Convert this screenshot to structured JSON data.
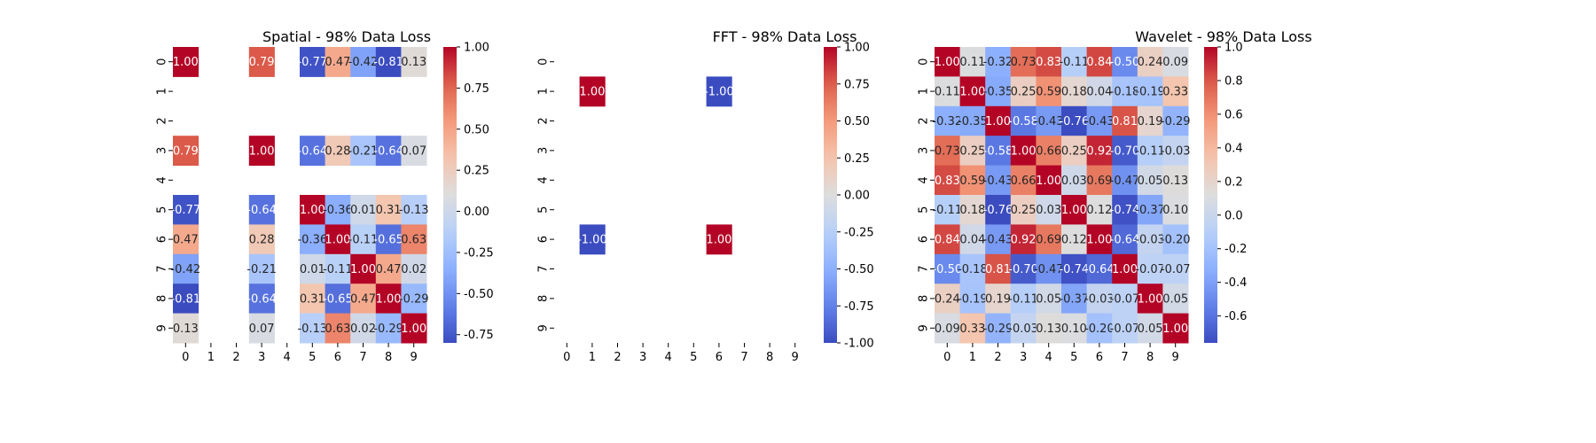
{
  "chart_data": [
    {
      "type": "heatmap",
      "title": "Spatial - 98% Data Loss",
      "xlabel": "",
      "ylabel": "",
      "x_categories": [
        "0",
        "1",
        "2",
        "3",
        "4",
        "5",
        "6",
        "7",
        "8",
        "9"
      ],
      "y_categories": [
        "0",
        "1",
        "2",
        "3",
        "4",
        "5",
        "6",
        "7",
        "8",
        "9"
      ],
      "colormap": "coolwarm",
      "vmin": -0.8,
      "vmax": 1.0,
      "colorbar_ticks": [
        "1.00",
        "0.75",
        "0.50",
        "0.25",
        "0.00",
        "-0.25",
        "-0.50",
        "-0.75"
      ],
      "values": [
        [
          1.0,
          null,
          null,
          0.79,
          null,
          -0.77,
          0.47,
          -0.42,
          -0.81,
          0.13
        ],
        [
          null,
          null,
          null,
          null,
          null,
          null,
          null,
          null,
          null,
          null
        ],
        [
          null,
          null,
          null,
          null,
          null,
          null,
          null,
          null,
          null,
          null
        ],
        [
          0.79,
          null,
          null,
          1.0,
          null,
          -0.64,
          0.28,
          -0.21,
          -0.64,
          0.07
        ],
        [
          null,
          null,
          null,
          null,
          null,
          null,
          null,
          null,
          null,
          null
        ],
        [
          -0.77,
          null,
          null,
          -0.64,
          null,
          1.0,
          -0.36,
          0.01,
          0.31,
          -0.13
        ],
        [
          0.47,
          null,
          null,
          0.28,
          null,
          -0.36,
          1.0,
          -0.11,
          -0.65,
          0.63
        ],
        [
          -0.42,
          null,
          null,
          -0.21,
          null,
          0.01,
          -0.11,
          1.0,
          0.47,
          0.02
        ],
        [
          -0.81,
          null,
          null,
          -0.64,
          null,
          0.31,
          -0.65,
          0.47,
          1.0,
          -0.29
        ],
        [
          0.13,
          null,
          null,
          0.07,
          null,
          -0.13,
          0.63,
          0.02,
          -0.29,
          1.0
        ]
      ]
    },
    {
      "type": "heatmap",
      "title": "FFT - 98% Data Loss",
      "xlabel": "",
      "ylabel": "",
      "x_categories": [
        "0",
        "1",
        "2",
        "3",
        "4",
        "5",
        "6",
        "7",
        "8",
        "9"
      ],
      "y_categories": [
        "0",
        "1",
        "2",
        "3",
        "4",
        "5",
        "6",
        "7",
        "8",
        "9"
      ],
      "colormap": "coolwarm",
      "vmin": -1.0,
      "vmax": 1.0,
      "colorbar_ticks": [
        "1.00",
        "0.75",
        "0.50",
        "0.25",
        "0.00",
        "-0.25",
        "-0.50",
        "-0.75",
        "-1.00"
      ],
      "values": [
        [
          null,
          null,
          null,
          null,
          null,
          null,
          null,
          null,
          null,
          null
        ],
        [
          null,
          1.0,
          null,
          null,
          null,
          null,
          -1.0,
          null,
          null,
          null
        ],
        [
          null,
          null,
          null,
          null,
          null,
          null,
          null,
          null,
          null,
          null
        ],
        [
          null,
          null,
          null,
          null,
          null,
          null,
          null,
          null,
          null,
          null
        ],
        [
          null,
          null,
          null,
          null,
          null,
          null,
          null,
          null,
          null,
          null
        ],
        [
          null,
          null,
          null,
          null,
          null,
          null,
          null,
          null,
          null,
          null
        ],
        [
          null,
          -1.0,
          null,
          null,
          null,
          null,
          1.0,
          null,
          null,
          null
        ],
        [
          null,
          null,
          null,
          null,
          null,
          null,
          null,
          null,
          null,
          null
        ],
        [
          null,
          null,
          null,
          null,
          null,
          null,
          null,
          null,
          null,
          null
        ],
        [
          null,
          null,
          null,
          null,
          null,
          null,
          null,
          null,
          null,
          null
        ]
      ]
    },
    {
      "type": "heatmap",
      "title": "Wavelet - 98% Data Loss",
      "xlabel": "",
      "ylabel": "",
      "x_categories": [
        "0",
        "1",
        "2",
        "3",
        "4",
        "5",
        "6",
        "7",
        "8",
        "9"
      ],
      "y_categories": [
        "0",
        "1",
        "2",
        "3",
        "4",
        "5",
        "6",
        "7",
        "8",
        "9"
      ],
      "colormap": "coolwarm",
      "vmin": -0.76,
      "vmax": 1.0,
      "colorbar_ticks": [
        "1.0",
        "0.8",
        "0.6",
        "0.4",
        "0.2",
        "0.0",
        "-0.2",
        "-0.4",
        "-0.6"
      ],
      "values": [
        [
          1.0,
          0.11,
          -0.32,
          0.73,
          0.83,
          -0.11,
          0.84,
          -0.5,
          0.24,
          0.09
        ],
        [
          0.11,
          1.0,
          -0.35,
          0.25,
          0.59,
          0.18,
          0.04,
          -0.18,
          -0.19,
          0.33
        ],
        [
          -0.32,
          -0.35,
          1.0,
          -0.58,
          -0.43,
          -0.76,
          -0.43,
          0.81,
          0.19,
          -0.29
        ],
        [
          0.73,
          0.25,
          -0.58,
          1.0,
          0.66,
          0.25,
          0.92,
          -0.7,
          -0.11,
          -0.03
        ],
        [
          0.83,
          0.59,
          -0.43,
          0.66,
          1.0,
          0.03,
          0.69,
          -0.47,
          0.05,
          0.13
        ],
        [
          -0.11,
          0.18,
          -0.76,
          0.25,
          0.03,
          1.0,
          0.12,
          -0.74,
          -0.37,
          0.1
        ],
        [
          0.84,
          0.04,
          -0.43,
          0.92,
          0.69,
          0.12,
          1.0,
          -0.64,
          -0.03,
          -0.2
        ],
        [
          -0.5,
          -0.18,
          0.81,
          -0.7,
          -0.47,
          -0.74,
          -0.64,
          1.0,
          -0.07,
          -0.07
        ],
        [
          0.24,
          -0.19,
          0.19,
          -0.11,
          0.05,
          -0.37,
          -0.03,
          -0.07,
          1.0,
          0.05
        ],
        [
          0.09,
          0.33,
          -0.29,
          -0.03,
          0.13,
          0.1,
          -0.2,
          -0.07,
          0.05,
          1.0
        ]
      ]
    }
  ]
}
